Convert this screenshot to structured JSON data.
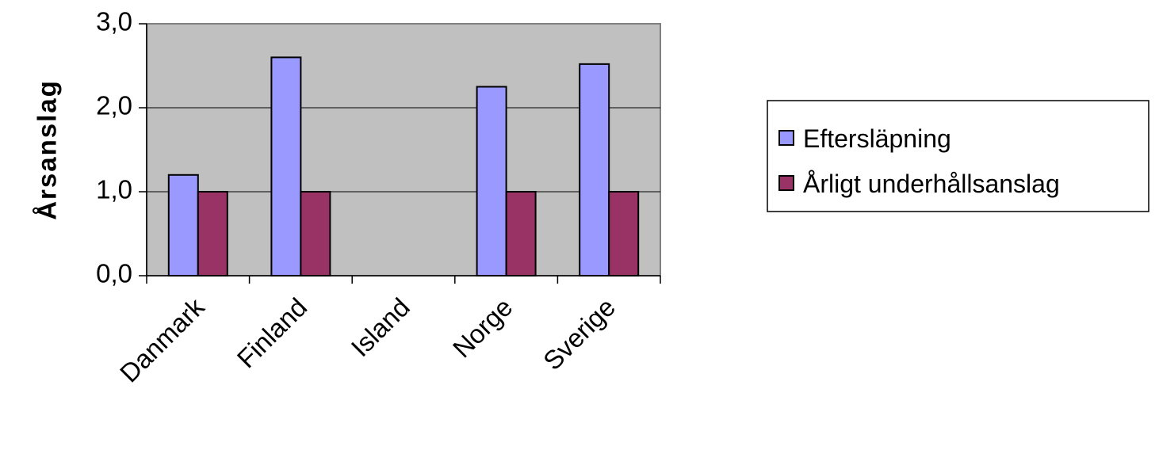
{
  "chart_data": {
    "type": "bar",
    "categories": [
      "Danmark",
      "Finland",
      "Island",
      "Norge",
      "Sverige"
    ],
    "series": [
      {
        "name": "Eftersläpning",
        "values": [
          1.2,
          2.6,
          null,
          2.25,
          2.52
        ],
        "color": "#9999ff"
      },
      {
        "name": "Årligt underhållsanslag",
        "values": [
          1.0,
          1.0,
          null,
          1.0,
          1.0
        ],
        "color": "#993366"
      }
    ],
    "ylabel": "Årsanslag",
    "xlabel": "",
    "ylim": [
      0,
      3
    ],
    "yticks": [
      "0,0",
      "1,0",
      "2,0",
      "3,0"
    ],
    "ytick_values": [
      0,
      1,
      2,
      3
    ],
    "grid": true,
    "plot_background": "#c0c0c0",
    "legend_position": "right"
  }
}
